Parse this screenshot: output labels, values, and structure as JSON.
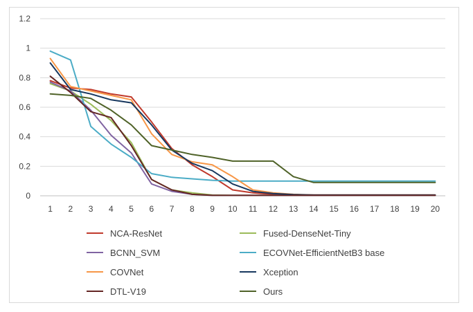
{
  "chart_data": {
    "type": "line",
    "title": "",
    "xlabel": "",
    "ylabel": "",
    "x": [
      1,
      2,
      3,
      4,
      5,
      6,
      7,
      8,
      9,
      10,
      11,
      12,
      13,
      14,
      15,
      16,
      17,
      18,
      19,
      20
    ],
    "xticks": [
      "1",
      "2",
      "3",
      "4",
      "5",
      "6",
      "7",
      "8",
      "9",
      "10",
      "11",
      "12",
      "13",
      "14",
      "15",
      "16",
      "17",
      "18",
      "19",
      "20"
    ],
    "ylim": [
      0,
      1.2
    ],
    "yticks": [
      "0",
      "0.2",
      "0.4",
      "0.6",
      "0.8",
      "1",
      "1.2"
    ],
    "grid": true,
    "legend_position": "bottom",
    "series": [
      {
        "name": "NCA-ResNet",
        "color": "#c0392b",
        "values": [
          0.78,
          0.73,
          0.72,
          0.69,
          0.67,
          0.5,
          0.32,
          0.21,
          0.13,
          0.04,
          0.02,
          0.01,
          0.005,
          0.005,
          0.005,
          0.005,
          0.005,
          0.005,
          0.005,
          0.005
        ]
      },
      {
        "name": "Fused-DenseNet-Tiny",
        "color": "#9bbb59",
        "values": [
          0.76,
          0.71,
          0.62,
          0.51,
          0.36,
          0.11,
          0.04,
          0.02,
          0.005,
          0.003,
          0.003,
          0.003,
          0.003,
          0.003,
          0.003,
          0.003,
          0.003,
          0.003,
          0.003,
          0.003
        ]
      },
      {
        "name": "BCNN_SVM",
        "color": "#8064a2",
        "values": [
          0.77,
          0.71,
          0.58,
          0.41,
          0.29,
          0.08,
          0.03,
          0.01,
          0.003,
          0.003,
          0.003,
          0.003,
          0.003,
          0.003,
          0.003,
          0.003,
          0.003,
          0.003,
          0.003,
          0.003
        ]
      },
      {
        "name": "ECOVNet-EfficientNetB3 base",
        "color": "#4bacc6",
        "values": [
          0.98,
          0.92,
          0.47,
          0.35,
          0.26,
          0.15,
          0.125,
          0.115,
          0.105,
          0.1,
          0.1,
          0.1,
          0.1,
          0.1,
          0.1,
          0.1,
          0.1,
          0.1,
          0.1,
          0.1
        ]
      },
      {
        "name": "COVNet",
        "color": "#f79646",
        "values": [
          0.93,
          0.74,
          0.71,
          0.68,
          0.65,
          0.42,
          0.28,
          0.23,
          0.21,
          0.13,
          0.04,
          0.02,
          0.01,
          0.005,
          0.005,
          0.005,
          0.005,
          0.005,
          0.005,
          0.005
        ]
      },
      {
        "name": "Xception",
        "color": "#17375e",
        "values": [
          0.9,
          0.72,
          0.69,
          0.65,
          0.63,
          0.48,
          0.31,
          0.22,
          0.17,
          0.08,
          0.03,
          0.015,
          0.008,
          0.005,
          0.005,
          0.005,
          0.005,
          0.005,
          0.005,
          0.005
        ]
      },
      {
        "name": "DTL-V19",
        "color": "#632523",
        "values": [
          0.81,
          0.7,
          0.57,
          0.53,
          0.34,
          0.11,
          0.04,
          0.01,
          0.003,
          0.003,
          0.003,
          0.003,
          0.003,
          0.003,
          0.003,
          0.003,
          0.003,
          0.003,
          0.003,
          0.003
        ]
      },
      {
        "name": "Ours",
        "color": "#4f6228",
        "values": [
          0.69,
          0.68,
          0.66,
          0.58,
          0.48,
          0.34,
          0.31,
          0.28,
          0.26,
          0.235,
          0.235,
          0.235,
          0.13,
          0.09,
          0.09,
          0.09,
          0.09,
          0.09,
          0.09,
          0.09
        ]
      }
    ]
  }
}
